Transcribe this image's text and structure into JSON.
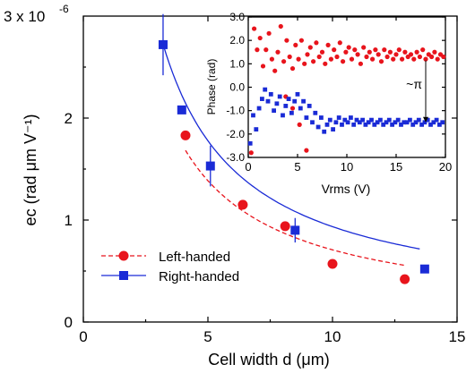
{
  "chart_data": [
    {
      "id": "main",
      "type": "scatter",
      "xlabel": "Cell width d (μm)",
      "ylabel": "ec (rad μm V⁻¹)",
      "xlim": [
        0,
        15
      ],
      "ylim": [
        0,
        3.0
      ],
      "y_multiplier_label": "3 x 10",
      "y_multiplier_exp": "-6",
      "x_ticks": [
        0,
        5,
        10,
        15
      ],
      "y_ticks": [
        0,
        1,
        2
      ],
      "legend_position": "bottom-left",
      "series": [
        {
          "name": "Left-handed",
          "marker": "circle",
          "color": "#e8141c",
          "points": [
            {
              "x": 4.1,
              "y": 1.83
            },
            {
              "x": 6.4,
              "y": 1.15
            },
            {
              "x": 8.1,
              "y": 0.94
            },
            {
              "x": 10.0,
              "y": 0.57
            },
            {
              "x": 12.9,
              "y": 0.42
            }
          ],
          "fit": {
            "style": "dashed",
            "x_from": 4.1,
            "x_to": 12.9,
            "a": 6.78,
            "b": 0.03
          }
        },
        {
          "name": "Right-handed",
          "marker": "square",
          "color": "#1a2bd6",
          "points": [
            {
              "x": 3.2,
              "y": 2.72,
              "err": 0.3
            },
            {
              "x": 3.95,
              "y": 2.08
            },
            {
              "x": 5.1,
              "y": 1.53,
              "err": 0.2
            },
            {
              "x": 8.5,
              "y": 0.9,
              "err": 0.12
            },
            {
              "x": 13.7,
              "y": 0.52
            }
          ],
          "fit": {
            "style": "solid",
            "x_from": 3.2,
            "x_to": 13.5,
            "a": 8.42,
            "b": 0.0933
          }
        }
      ]
    },
    {
      "id": "inset",
      "type": "scatter",
      "xlabel": "Vrms (V)",
      "ylabel": "Phase (rad)",
      "xlim": [
        0,
        20
      ],
      "ylim": [
        -3.0,
        3.0
      ],
      "x_ticks": [
        0,
        5,
        10,
        15,
        20
      ],
      "y_ticks": [
        -3.0,
        -2.0,
        -1.0,
        0.0,
        1.0,
        2.0,
        3.0
      ],
      "y_tick_labels": [
        "-3.0",
        "-2.0",
        "-1.0",
        "0.0",
        "1.0",
        "2.0",
        "3.0"
      ],
      "annotation": "~π",
      "annotation_x": 18,
      "annotation_from": 1.3,
      "annotation_to": -1.5,
      "series": [
        {
          "name": "",
          "marker": "circle",
          "color": "#e8141c",
          "points": [
            [
              0.3,
              -2.8
            ],
            [
              0.6,
              2.5
            ],
            [
              0.9,
              1.6
            ],
            [
              1.2,
              2.1
            ],
            [
              1.5,
              0.9
            ],
            [
              1.8,
              1.6
            ],
            [
              2.1,
              2.3
            ],
            [
              2.4,
              1.2
            ],
            [
              2.7,
              0.7
            ],
            [
              3.0,
              1.5
            ],
            [
              3.3,
              2.6
            ],
            [
              3.6,
              1.1
            ],
            [
              3.9,
              2.0
            ],
            [
              4.2,
              1.3
            ],
            [
              4.5,
              0.8
            ],
            [
              4.8,
              1.8
            ],
            [
              5.1,
              1.2
            ],
            [
              5.4,
              2.0
            ],
            [
              5.7,
              1.0
            ],
            [
              6.0,
              1.4
            ],
            [
              6.3,
              1.7
            ],
            [
              6.6,
              1.1
            ],
            [
              6.9,
              1.9
            ],
            [
              7.2,
              1.3
            ],
            [
              7.5,
              1.5
            ],
            [
              7.8,
              1.0
            ],
            [
              8.1,
              1.8
            ],
            [
              8.4,
              1.2
            ],
            [
              8.7,
              1.6
            ],
            [
              9.0,
              1.3
            ],
            [
              9.3,
              1.9
            ],
            [
              9.6,
              1.1
            ],
            [
              9.9,
              1.5
            ],
            [
              10.2,
              1.7
            ],
            [
              10.5,
              1.2
            ],
            [
              10.8,
              1.6
            ],
            [
              11.1,
              1.4
            ],
            [
              11.4,
              1.0
            ],
            [
              11.7,
              1.7
            ],
            [
              12.0,
              1.3
            ],
            [
              12.3,
              1.5
            ],
            [
              12.6,
              1.2
            ],
            [
              12.9,
              1.6
            ],
            [
              13.2,
              1.4
            ],
            [
              13.5,
              1.1
            ],
            [
              13.8,
              1.6
            ],
            [
              14.1,
              1.3
            ],
            [
              14.4,
              1.5
            ],
            [
              14.7,
              1.2
            ],
            [
              15.0,
              1.4
            ],
            [
              15.3,
              1.6
            ],
            [
              15.6,
              1.2
            ],
            [
              15.9,
              1.5
            ],
            [
              16.2,
              1.3
            ],
            [
              16.5,
              1.4
            ],
            [
              16.8,
              1.2
            ],
            [
              17.1,
              1.5
            ],
            [
              17.4,
              1.3
            ],
            [
              17.7,
              1.6
            ],
            [
              18.0,
              1.2
            ],
            [
              18.3,
              1.4
            ],
            [
              18.6,
              1.3
            ],
            [
              18.9,
              1.5
            ],
            [
              19.2,
              1.2
            ],
            [
              19.5,
              1.4
            ],
            [
              19.8,
              1.3
            ],
            [
              3.8,
              -0.4
            ],
            [
              4.5,
              -0.9
            ],
            [
              5.2,
              -1.6
            ],
            [
              5.9,
              -2.7
            ]
          ]
        },
        {
          "name": "",
          "marker": "square",
          "color": "#1a2bd6",
          "points": [
            [
              0.2,
              -2.4
            ],
            [
              0.5,
              -1.2
            ],
            [
              0.8,
              -1.8
            ],
            [
              1.1,
              -0.9
            ],
            [
              1.4,
              -0.5
            ],
            [
              1.7,
              -0.1
            ],
            [
              2.0,
              -0.6
            ],
            [
              2.3,
              -0.3
            ],
            [
              2.6,
              -1.0
            ],
            [
              2.9,
              -0.7
            ],
            [
              3.2,
              -0.4
            ],
            [
              3.5,
              -1.2
            ],
            [
              3.8,
              -0.8
            ],
            [
              4.1,
              -0.5
            ],
            [
              4.4,
              -1.1
            ],
            [
              4.7,
              -0.6
            ],
            [
              5.0,
              -0.3
            ],
            [
              5.3,
              -0.9
            ],
            [
              5.6,
              -0.6
            ],
            [
              5.9,
              -1.3
            ],
            [
              6.2,
              -0.8
            ],
            [
              6.5,
              -1.5
            ],
            [
              6.8,
              -1.1
            ],
            [
              7.1,
              -1.7
            ],
            [
              7.4,
              -1.3
            ],
            [
              7.7,
              -1.9
            ],
            [
              8.0,
              -1.6
            ],
            [
              8.3,
              -1.4
            ],
            [
              8.6,
              -1.8
            ],
            [
              8.9,
              -1.5
            ],
            [
              9.2,
              -1.3
            ],
            [
              9.5,
              -1.6
            ],
            [
              9.8,
              -1.4
            ],
            [
              10.1,
              -1.5
            ],
            [
              10.4,
              -1.3
            ],
            [
              10.7,
              -1.6
            ],
            [
              11.0,
              -1.4
            ],
            [
              11.3,
              -1.5
            ],
            [
              11.6,
              -1.4
            ],
            [
              11.9,
              -1.6
            ],
            [
              12.2,
              -1.5
            ],
            [
              12.5,
              -1.4
            ],
            [
              12.8,
              -1.6
            ],
            [
              13.1,
              -1.5
            ],
            [
              13.4,
              -1.4
            ],
            [
              13.7,
              -1.6
            ],
            [
              14.0,
              -1.5
            ],
            [
              14.3,
              -1.4
            ],
            [
              14.6,
              -1.6
            ],
            [
              14.9,
              -1.5
            ],
            [
              15.2,
              -1.4
            ],
            [
              15.5,
              -1.6
            ],
            [
              15.8,
              -1.5
            ],
            [
              16.1,
              -1.5
            ],
            [
              16.4,
              -1.4
            ],
            [
              16.7,
              -1.6
            ],
            [
              17.0,
              -1.5
            ],
            [
              17.3,
              -1.4
            ],
            [
              17.6,
              -1.6
            ],
            [
              17.9,
              -1.5
            ],
            [
              18.2,
              -1.4
            ],
            [
              18.5,
              -1.6
            ],
            [
              18.8,
              -1.5
            ],
            [
              19.1,
              -1.4
            ],
            [
              19.4,
              -1.6
            ],
            [
              19.7,
              -1.5
            ]
          ]
        }
      ]
    }
  ]
}
